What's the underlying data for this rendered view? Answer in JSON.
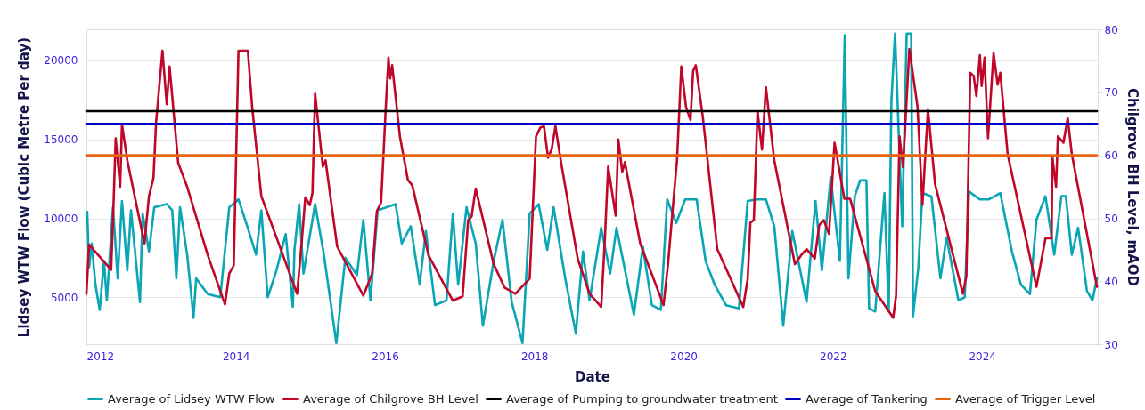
{
  "chart_data": {
    "type": "line",
    "xlabel": "Date",
    "ylabel": "Lidsey WTW Flow (Cubic Metre Per day)",
    "y2label": "Chilgrove BH Level, mAOD",
    "xlim": [
      "2012-01-01",
      "2025-07-20"
    ],
    "xticks": [
      "2012",
      "2014",
      "2016",
      "2018",
      "2020",
      "2022",
      "2024"
    ],
    "ylim": [
      2030,
      21970
    ],
    "yticks": [
      5000,
      10000,
      15000,
      20000
    ],
    "y2lim": [
      30,
      80
    ],
    "y2ticks": [
      30,
      40,
      50,
      60,
      70,
      80
    ],
    "grid": "y",
    "legend": "bottom",
    "line_style": "solid",
    "series": [
      {
        "name": "Average of Lidsey WTW Flow",
        "color": "#0aa6b5",
        "x": [
          "2012-01-05",
          "2012-01-14",
          "2012-01-27",
          "2012-02-14",
          "2012-03-06",
          "2012-03-27",
          "2012-04-10",
          "2012-05-10",
          "2012-06-02",
          "2012-06-23",
          "2012-07-19",
          "2012-08-06",
          "2012-09-19",
          "2012-10-02",
          "2012-11-02",
          "2012-11-28",
          "2013-01-29",
          "2013-02-24",
          "2013-03-16",
          "2013-04-03",
          "2013-05-08",
          "2013-06-08",
          "2013-06-21",
          "2013-08-17",
          "2013-10-17",
          "2013-11-30",
          "2014-01-14",
          "2014-02-26",
          "2014-04-10",
          "2014-05-06",
          "2014-06-06",
          "2014-07-19",
          "2014-09-02",
          "2014-10-07",
          "2014-10-15",
          "2014-11-07",
          "2014-11-28",
          "2015-01-24",
          "2015-03-08",
          "2015-05-08",
          "2015-06-21",
          "2015-08-17",
          "2015-09-17",
          "2015-10-22",
          "2015-11-26",
          "2016-01-09",
          "2016-02-22",
          "2016-03-23",
          "2016-05-06",
          "2016-06-19",
          "2016-07-19",
          "2016-09-02",
          "2016-10-28",
          "2016-11-28",
          "2016-12-24",
          "2017-02-03",
          "2017-03-20",
          "2017-04-24",
          "2017-06-16",
          "2017-07-29",
          "2017-09-12",
          "2017-11-04",
          "2017-12-09",
          "2018-01-22",
          "2018-03-05",
          "2018-04-05",
          "2018-06-01",
          "2018-07-23",
          "2018-08-27",
          "2018-09-28",
          "2018-11-24",
          "2019-01-07",
          "2019-02-07",
          "2019-05-03",
          "2019-06-16",
          "2019-07-30",
          "2019-09-12",
          "2019-10-13",
          "2019-11-26",
          "2020-01-09",
          "2020-03-05",
          "2020-04-18",
          "2020-06-01",
          "2020-07-27",
          "2020-09-28",
          "2020-11-10",
          "2020-12-24",
          "2021-02-07",
          "2021-03-20",
          "2021-05-03",
          "2021-06-16",
          "2021-08-25",
          "2021-10-08",
          "2021-11-08",
          "2021-12-21",
          "2022-02-04",
          "2022-02-28",
          "2022-03-18",
          "2022-04-18",
          "2022-05-14",
          "2022-06-14",
          "2022-06-27",
          "2022-07-27",
          "2022-09-10",
          "2022-10-01",
          "2022-10-14",
          "2022-11-01",
          "2022-12-06",
          "2022-12-28",
          "2023-01-19",
          "2023-01-28",
          "2023-02-23",
          "2023-03-15",
          "2023-04-28",
          "2023-06-11",
          "2023-07-11",
          "2023-09-07",
          "2023-10-08",
          "2023-10-29",
          "2023-12-21",
          "2024-02-04",
          "2024-03-30",
          "2024-05-26",
          "2024-07-09",
          "2024-08-22",
          "2024-09-23",
          "2024-11-06",
          "2024-12-19",
          "2025-01-23",
          "2025-02-14",
          "2025-03-15",
          "2025-04-15",
          "2025-05-28",
          "2025-06-24",
          "2025-07-16"
        ],
        "values": [
          10400,
          6900,
          8400,
          5800,
          4200,
          7300,
          4800,
          10700,
          6200,
          11100,
          6700,
          10500,
          4700,
          10300,
          7900,
          10700,
          10900,
          10500,
          6200,
          10700,
          7700,
          3700,
          6200,
          5200,
          5000,
          10700,
          11200,
          9500,
          7700,
          10500,
          5000,
          6700,
          9000,
          4400,
          8000,
          10900,
          6500,
          10900,
          7700,
          2100,
          7500,
          6400,
          9900,
          4800,
          10500,
          10700,
          10900,
          8400,
          9500,
          5800,
          9200,
          4500,
          4800,
          10300,
          5800,
          10700,
          8400,
          3200,
          7300,
          9900,
          4700,
          2100,
          10300,
          10900,
          8000,
          10700,
          6200,
          2700,
          7900,
          4800,
          9400,
          6500,
          9400,
          3900,
          8200,
          4500,
          4200,
          11200,
          9700,
          11200,
          11200,
          7300,
          5800,
          4500,
          4300,
          11100,
          11200,
          11200,
          9500,
          3200,
          9200,
          4700,
          11100,
          6700,
          12600,
          7300,
          21600,
          6200,
          11400,
          12400,
          12400,
          4300,
          4100,
          11600,
          4100,
          17400,
          21700,
          9500,
          21700,
          21700,
          3800,
          6900,
          11600,
          11400,
          6200,
          8800,
          4800,
          5000,
          11700,
          11200,
          11200,
          11600,
          7900,
          5800,
          5200,
          9900,
          11400,
          7700,
          11400,
          11400,
          7700,
          9400,
          5400,
          4800,
          6200
        ]
      },
      {
        "name": "Average of Chilgrove BH Level",
        "axis": "y2",
        "color": "#c0072a",
        "x": [
          "2012-01-01",
          "2012-01-14",
          "2012-05-01",
          "2012-05-14",
          "2012-05-23",
          "2012-06-14",
          "2012-06-23",
          "2012-07-19",
          "2012-10-11",
          "2012-11-02",
          "2012-11-24",
          "2012-12-07",
          "2013-01-07",
          "2013-01-28",
          "2013-02-11",
          "2013-03-25",
          "2013-05-08",
          "2013-08-17",
          "2013-11-09",
          "2013-11-30",
          "2013-12-22",
          "2014-01-14",
          "2014-03-01",
          "2014-03-22",
          "2014-05-06",
          "2014-10-28",
          "2014-11-19",
          "2014-12-07",
          "2014-12-29",
          "2015-01-11",
          "2015-01-24",
          "2015-03-03",
          "2015-03-16",
          "2015-05-12",
          "2015-09-17",
          "2015-10-30",
          "2015-11-22",
          "2015-12-13",
          "2016-01-05",
          "2016-01-18",
          "2016-01-26",
          "2016-02-05",
          "2016-03-14",
          "2016-04-22",
          "2016-05-14",
          "2016-08-01",
          "2016-11-28",
          "2017-01-15",
          "2017-02-11",
          "2017-02-28",
          "2017-03-20",
          "2017-06-16",
          "2017-08-08",
          "2017-09-30",
          "2017-12-09",
          "2018-01-09",
          "2018-01-30",
          "2018-02-17",
          "2018-03-09",
          "2018-03-27",
          "2018-04-14",
          "2018-05-10",
          "2018-08-01",
          "2018-09-28",
          "2018-11-24",
          "2018-12-11",
          "2018-12-28",
          "2019-02-03",
          "2019-02-16",
          "2019-03-07",
          "2019-03-20",
          "2019-06-03",
          "2019-09-25",
          "2019-10-17",
          "2019-11-17",
          "2019-11-30",
          "2019-12-21",
          "2020-01-13",
          "2020-02-04",
          "2020-02-17",
          "2020-03-01",
          "2020-04-05",
          "2020-06-14",
          "2020-10-19",
          "2020-11-10",
          "2020-11-23",
          "2020-12-10",
          "2020-12-28",
          "2021-01-19",
          "2021-02-07",
          "2021-03-20",
          "2021-06-29",
          "2021-07-29",
          "2021-08-25",
          "2021-10-04",
          "2021-10-26",
          "2021-11-17",
          "2021-12-13",
          "2022-01-09",
          "2022-02-26",
          "2022-03-26",
          "2022-07-27",
          "2022-10-23",
          "2022-11-06",
          "2022-11-23",
          "2022-12-10",
          "2023-01-10",
          "2023-02-19",
          "2023-03-15",
          "2023-04-11",
          "2023-05-16",
          "2023-09-29",
          "2023-10-16",
          "2023-11-04",
          "2023-11-21",
          "2023-12-04",
          "2023-12-21",
          "2023-12-30",
          "2024-01-13",
          "2024-01-30",
          "2024-02-26",
          "2024-03-17",
          "2024-03-30",
          "2024-05-05",
          "2024-09-23",
          "2024-11-06",
          "2024-12-06",
          "2024-12-10",
          "2024-12-28",
          "2025-01-06",
          "2025-02-02",
          "2025-02-23",
          "2025-03-15",
          "2025-07-16"
        ],
        "values": [
          38,
          45.8,
          41.8,
          53.5,
          62.7,
          55,
          64.9,
          59.2,
          46,
          53.5,
          56.4,
          65.3,
          76.6,
          68.1,
          74.1,
          58.8,
          55,
          44.1,
          36.3,
          41.2,
          42.5,
          76.6,
          76.6,
          67.7,
          53.5,
          38,
          46,
          53.3,
          52.1,
          54,
          69.8,
          58.2,
          59.2,
          45.5,
          37.7,
          41.2,
          51.1,
          52.5,
          67.7,
          75.5,
          72.2,
          74.3,
          63,
          56.1,
          55.2,
          44.1,
          36.9,
          37.6,
          49.7,
          50.3,
          54.7,
          42.7,
          39,
          38,
          40.4,
          63,
          64.4,
          64.6,
          59.6,
          61,
          64.6,
          59.2,
          43.6,
          38,
          35.9,
          46,
          58.2,
          50.4,
          62.5,
          57.4,
          58.9,
          46,
          36.2,
          42.7,
          54.5,
          59.2,
          74.1,
          67.7,
          65.6,
          73.4,
          74.3,
          65.9,
          45.1,
          35.9,
          40.4,
          49.3,
          49.7,
          67,
          60.9,
          70.8,
          59.2,
          42.7,
          44.1,
          45.1,
          43.6,
          48.9,
          49.7,
          47.5,
          62,
          53.1,
          53.1,
          38.4,
          34.2,
          37.7,
          63,
          58.1,
          76.9,
          67.7,
          52.1,
          67.3,
          55.4,
          38,
          40.8,
          73.1,
          72.6,
          69.4,
          75.9,
          71,
          75.5,
          62.7,
          76.2,
          71.2,
          73.1,
          60.2,
          39.1,
          46.8,
          46.8,
          59.6,
          55,
          63,
          62,
          65.9,
          60.2,
          39.1
        ]
      },
      {
        "name": "Average of Pumping to groundwater treatment",
        "axis": "y2",
        "color": "#000000",
        "x": [
          "2012-01-01",
          "2025-07-16"
        ],
        "values": [
          67,
          67
        ]
      },
      {
        "name": "Average of Tankering",
        "axis": "y2",
        "color": "#0000c0",
        "x": [
          "2012-01-01",
          "2025-07-16"
        ],
        "values": [
          65,
          65
        ]
      },
      {
        "name": "Average of Trigger Level",
        "axis": "y2",
        "color": "#e8650f",
        "x": [
          "2012-01-01",
          "2025-07-16"
        ],
        "values": [
          60,
          60
        ]
      }
    ]
  }
}
